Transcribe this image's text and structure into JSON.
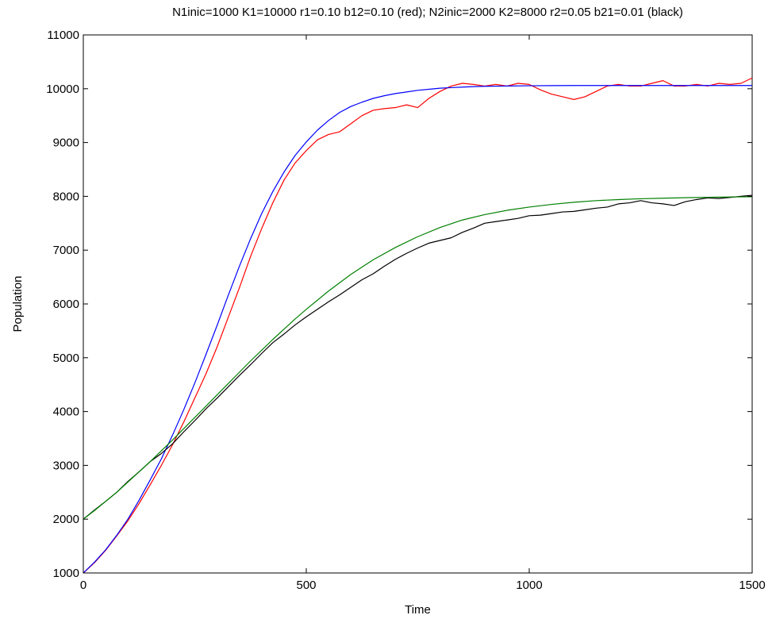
{
  "chart_data": {
    "type": "line",
    "title": "N1inic=1000 K1=10000 r1=0.10 b12=0.10 (red); N2inic=2000 K2=8000 r2=0.05 b21=0.01 (black)",
    "xlabel": "Time",
    "ylabel": "Population",
    "xlim": [
      0,
      1500
    ],
    "ylim": [
      1000,
      11000
    ],
    "xticks": [
      0,
      500,
      1000,
      1500
    ],
    "yticks": [
      1000,
      2000,
      3000,
      4000,
      5000,
      6000,
      7000,
      8000,
      9000,
      10000,
      11000
    ],
    "grid": false,
    "legend": "none",
    "series": [
      {
        "color": "#ff0000",
        "x": [
          0,
          25,
          50,
          75,
          100,
          125,
          150,
          175,
          200,
          225,
          250,
          275,
          300,
          325,
          350,
          375,
          400,
          425,
          450,
          475,
          500,
          525,
          550,
          575,
          600,
          625,
          650,
          675,
          700,
          725,
          750,
          775,
          800,
          825,
          850,
          875,
          900,
          925,
          950,
          975,
          1000,
          1025,
          1050,
          1075,
          1100,
          1125,
          1150,
          1175,
          1200,
          1225,
          1250,
          1275,
          1300,
          1325,
          1350,
          1375,
          1400,
          1425,
          1450,
          1475,
          1500
        ],
        "y": [
          1000,
          1190,
          1420,
          1690,
          1970,
          2290,
          2640,
          3000,
          3380,
          3800,
          4250,
          4700,
          5200,
          5750,
          6300,
          6880,
          7400,
          7880,
          8300,
          8620,
          8850,
          9050,
          9150,
          9200,
          9350,
          9500,
          9600,
          9630,
          9650,
          9700,
          9650,
          9820,
          9950,
          10050,
          10100,
          10080,
          10050,
          10080,
          10050,
          10100,
          10080,
          9980,
          9900,
          9850,
          9800,
          9850,
          9950,
          10050,
          10080,
          10050,
          10050,
          10100,
          10150,
          10050,
          10050,
          10080,
          10050,
          10100,
          10080,
          10100,
          10200
        ]
      },
      {
        "color": "#0000ff",
        "x": [
          0,
          25,
          50,
          75,
          100,
          125,
          150,
          175,
          200,
          225,
          250,
          275,
          300,
          325,
          350,
          375,
          400,
          425,
          450,
          475,
          500,
          525,
          550,
          575,
          600,
          625,
          650,
          675,
          700,
          725,
          750,
          775,
          800,
          825,
          850,
          875,
          900,
          950,
          1000,
          1050,
          1100,
          1150,
          1200,
          1250,
          1300,
          1350,
          1400,
          1450,
          1500
        ],
        "y": [
          1000,
          1200,
          1430,
          1700,
          2000,
          2350,
          2730,
          3120,
          3560,
          4030,
          4530,
          5060,
          5600,
          6160,
          6700,
          7210,
          7680,
          8090,
          8450,
          8760,
          9010,
          9230,
          9410,
          9560,
          9670,
          9750,
          9820,
          9870,
          9910,
          9940,
          9970,
          9990,
          10010,
          10020,
          10030,
          10040,
          10045,
          10050,
          10055,
          10058,
          10060,
          10060,
          10060,
          10060,
          10060,
          10060,
          10060,
          10060,
          10060
        ]
      },
      {
        "color": "#000000",
        "x": [
          0,
          25,
          50,
          75,
          100,
          125,
          150,
          175,
          200,
          225,
          250,
          275,
          300,
          325,
          350,
          375,
          400,
          425,
          450,
          475,
          500,
          525,
          550,
          575,
          600,
          625,
          650,
          675,
          700,
          725,
          750,
          775,
          800,
          825,
          850,
          875,
          900,
          925,
          950,
          975,
          1000,
          1025,
          1050,
          1075,
          1100,
          1125,
          1150,
          1175,
          1200,
          1225,
          1250,
          1275,
          1300,
          1325,
          1350,
          1375,
          1400,
          1425,
          1450,
          1475,
          1500
        ],
        "y": [
          2000,
          2170,
          2330,
          2500,
          2700,
          2880,
          3070,
          3220,
          3400,
          3620,
          3830,
          4050,
          4250,
          4460,
          4670,
          4870,
          5080,
          5280,
          5440,
          5610,
          5760,
          5900,
          6040,
          6170,
          6310,
          6450,
          6560,
          6700,
          6830,
          6940,
          7040,
          7130,
          7180,
          7230,
          7330,
          7410,
          7500,
          7530,
          7560,
          7590,
          7640,
          7650,
          7680,
          7710,
          7720,
          7750,
          7780,
          7800,
          7860,
          7880,
          7920,
          7880,
          7860,
          7830,
          7900,
          7940,
          7970,
          7960,
          7980,
          8000,
          8020
        ]
      },
      {
        "color": "#008000",
        "x": [
          0,
          25,
          50,
          75,
          100,
          125,
          150,
          175,
          200,
          225,
          250,
          275,
          300,
          325,
          350,
          375,
          400,
          425,
          450,
          475,
          500,
          550,
          600,
          650,
          700,
          750,
          800,
          850,
          900,
          950,
          1000,
          1050,
          1100,
          1150,
          1200,
          1250,
          1300,
          1350,
          1400,
          1450,
          1500
        ],
        "y": [
          2000,
          2160,
          2330,
          2500,
          2690,
          2880,
          3070,
          3270,
          3470,
          3680,
          3890,
          4100,
          4310,
          4520,
          4730,
          4940,
          5140,
          5340,
          5530,
          5720,
          5900,
          6240,
          6550,
          6820,
          7050,
          7250,
          7420,
          7560,
          7660,
          7740,
          7800,
          7850,
          7890,
          7920,
          7940,
          7955,
          7965,
          7975,
          7982,
          7988,
          7992
        ]
      }
    ]
  }
}
